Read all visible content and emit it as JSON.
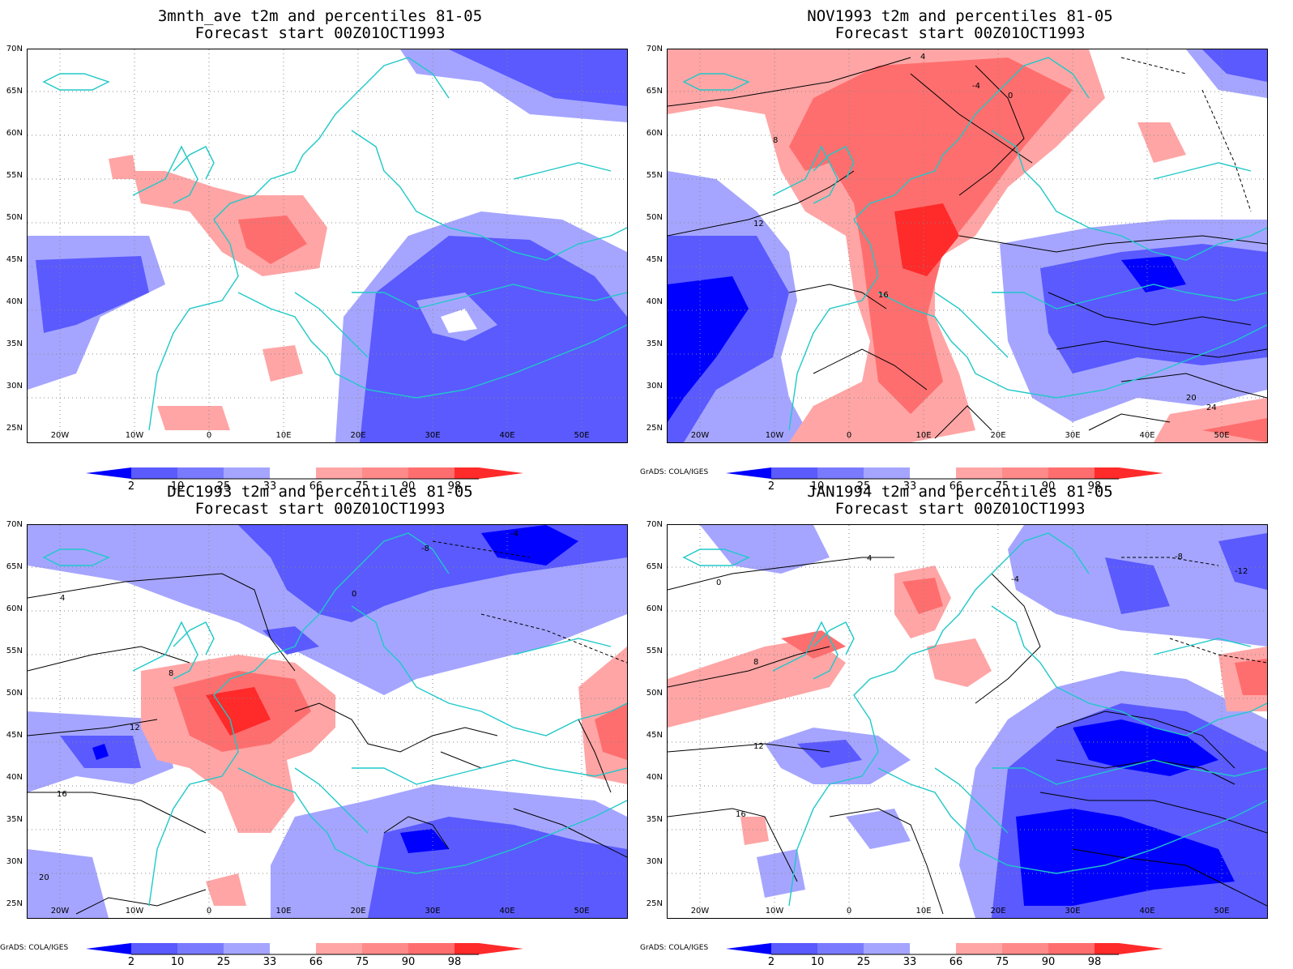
{
  "colors": {
    "blue_dark": "#0000ff",
    "blue_mid": "#5a5aff",
    "blue_light": "#a5a5ff",
    "red_light": "#ffa5a5",
    "red_mid": "#ff6e6e",
    "red_dark": "#ff2a2a",
    "coast": "#20c8c8",
    "contour": "#000000"
  },
  "axes": {
    "y_ticks": [
      "70N",
      "65N",
      "60N",
      "55N",
      "50N",
      "45N",
      "40N",
      "35N",
      "30N",
      "25N"
    ],
    "x_ticks": [
      "20W",
      "10W",
      "0",
      "10E",
      "20E",
      "30E",
      "40E",
      "50E"
    ]
  },
  "colorbar": {
    "labels": [
      "2",
      "10",
      "25",
      "33",
      "66",
      "75",
      "90",
      "98"
    ]
  },
  "credit": "GrADS: COLA/IGES",
  "panels": [
    {
      "title1": "3mnth_ave t2m and percentiles 81-05",
      "title2": "Forecast start 00Z01OCT1993",
      "contour_labels": []
    },
    {
      "title1": "NOV1993 t2m and percentiles 81-05",
      "title2": "Forecast start 00Z01OCT1993",
      "contour_labels": [
        "4",
        "-4",
        "0",
        "8",
        "12",
        "16",
        "20",
        "24"
      ]
    },
    {
      "title1": "DEC1993 t2m and percentiles 81-05",
      "title2": "Forecast start 00Z01OCT1993",
      "contour_labels": [
        "-4",
        "-8",
        "0",
        "4",
        "8",
        "12",
        "16",
        "20"
      ]
    },
    {
      "title1": "JAN1994 t2m and percentiles 81-05",
      "title2": "Forecast start 00Z01OCT1993",
      "contour_labels": [
        "-4",
        "-8",
        "-12",
        "0",
        "4",
        "8",
        "12",
        "16"
      ]
    }
  ]
}
